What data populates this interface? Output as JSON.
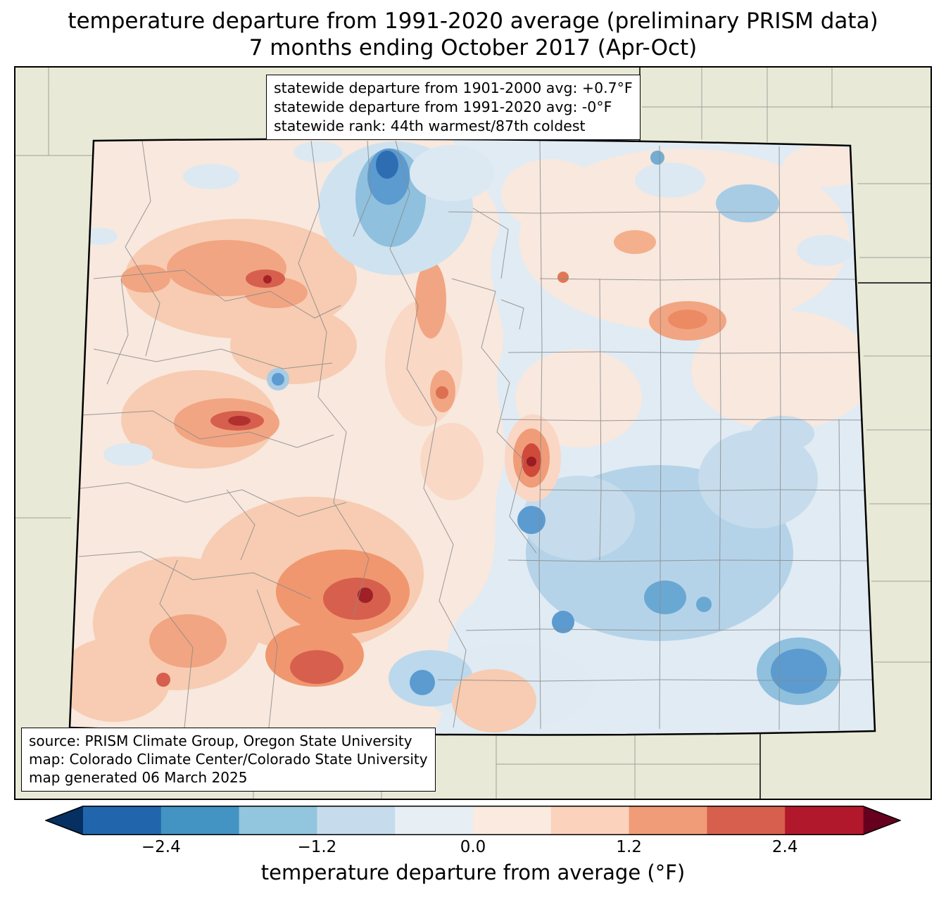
{
  "title": {
    "line1": "temperature departure from 1991-2020 average (preliminary PRISM data)",
    "line2": "7 months ending October 2017 (Apr-Oct)"
  },
  "stats_box": {
    "line1": "statewide departure from 1901-2000 avg: +0.7°F",
    "line2": "statewide departure from 1991-2020 avg: -0°F",
    "line3": "statewide rank: 44th warmest/87th coldest"
  },
  "source_box": {
    "line1": "source: PRISM Climate Group, Oregon State University",
    "line2": "map: Colorado Climate Center/Colorado State University",
    "line3": "map generated 06 March 2025"
  },
  "colorbar": {
    "label": "temperature departure from average (°F)",
    "ticks": [
      {
        "label": "−2.4",
        "pos": 10
      },
      {
        "label": "−1.2",
        "pos": 30
      },
      {
        "label": "0.0",
        "pos": 50
      },
      {
        "label": "1.2",
        "pos": 70
      },
      {
        "label": "2.4",
        "pos": 90
      }
    ],
    "arrow_left_color": "#053061",
    "arrow_right_color": "#67001f",
    "segment_colors": [
      "#2166ac",
      "#4393c3",
      "#92c5de",
      "#c6dcec",
      "#e7eff5",
      "#faeae0",
      "#fbd2bc",
      "#f09c78",
      "#d6604d",
      "#b2182b"
    ]
  },
  "map": {
    "region": "Colorado",
    "outside_fill": "#e9e9d7",
    "county_line_color": "#8a8a8a",
    "state_border_color": "#000000"
  }
}
